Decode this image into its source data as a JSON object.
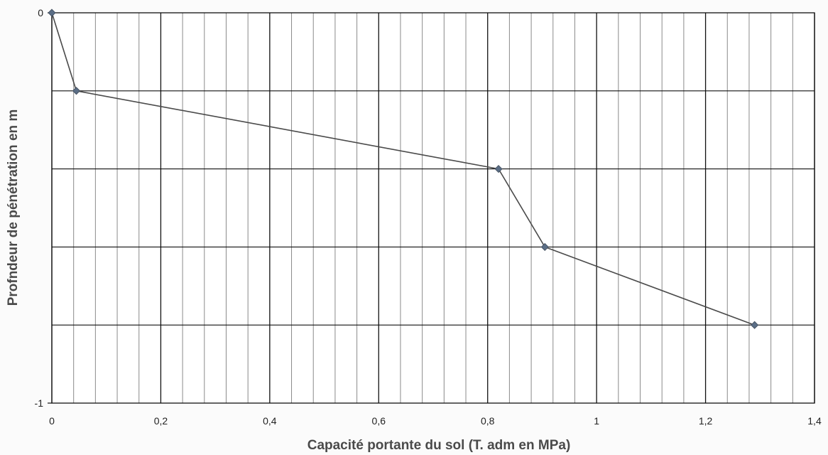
{
  "chart_data": {
    "type": "line",
    "xlabel": "Capacité portante du sol (T. adm en MPa)",
    "ylabel": "Profndeur de pénétration en m",
    "xlim": [
      0,
      1.4
    ],
    "ylim": [
      -1,
      0
    ],
    "x_major_ticks": [
      0,
      0.2,
      0.4,
      0.6,
      0.8,
      1,
      1.2,
      1.4
    ],
    "x_tick_labels": [
      "0",
      "0,2",
      "0,4",
      "0,6",
      "0,8",
      "1",
      "1,2",
      "1,4"
    ],
    "x_minor_step": 0.04,
    "y_tick_labels": [
      {
        "value": 0,
        "label": "0"
      },
      {
        "value": -1,
        "label": "-1"
      }
    ],
    "y_gridlines": [
      -0.2,
      -0.4,
      -0.6,
      -0.8
    ],
    "grid": true,
    "legend": "none",
    "series": [
      {
        "x": [
          0,
          0.045,
          0.82,
          0.905,
          1.29
        ],
        "y": [
          0,
          -0.2,
          -0.4,
          -0.6,
          -0.8
        ]
      }
    ],
    "colors": {
      "line": "#4a4a4a",
      "marker": "#5b6e86",
      "grid_major": "#111111",
      "grid_minor": "#8a8a8a"
    }
  }
}
